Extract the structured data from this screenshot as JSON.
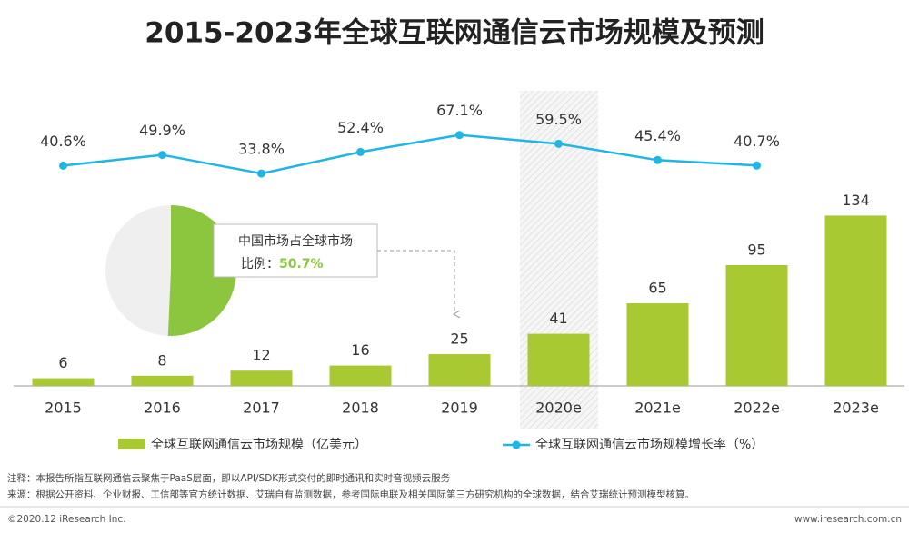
{
  "chart_data": {
    "type": "bar_line",
    "title": "2015-2023年全球互联网通信云市场规模及预测",
    "categories": [
      "2015",
      "2016",
      "2017",
      "2018",
      "2019",
      "2020e",
      "2021e",
      "2022e",
      "2023e"
    ],
    "series": [
      {
        "name": "全球互联网通信云市场规模（亿美元）",
        "type": "bar",
        "color": "#a8c932",
        "values": [
          6,
          8,
          12,
          16,
          25,
          41,
          65,
          95,
          134
        ]
      },
      {
        "name": "全球互联网通信云市场规模增长率（%）",
        "type": "line",
        "axis": "y2",
        "color": "#1fb6e6",
        "values": [
          40.6,
          49.9,
          33.8,
          52.4,
          67.1,
          59.5,
          45.4,
          40.7,
          null
        ],
        "value_labels": [
          "40.6%",
          "49.9%",
          "33.8%",
          "52.4%",
          "67.1%",
          "59.5%",
          "45.4%",
          "40.7%",
          null
        ]
      }
    ],
    "ylim": [
      0,
      200
    ],
    "y2lim": [
      -150,
      70
    ],
    "pie": {
      "label_lines": [
        "中国市场占全球市场",
        "比例："
      ],
      "value": 50.7,
      "value_label": "50.7%",
      "color": "#8cc63f"
    },
    "notes": [
      "注释：本报告所指互联网通信云聚焦于PaaS层面，即以API/SDK形式交付的即时通讯和实时音视频云服务",
      "来源：根据公开资料、企业财报、工信部等官方统计数据、艾瑞自有监测数据，参考国际电联及相关国际第三方研究机构的全球数据，结合艾瑞统计预测模型核算。"
    ],
    "footer": {
      "left": "©2020.12 iResearch Inc.",
      "right": "www.iresearch.com.cn"
    }
  }
}
